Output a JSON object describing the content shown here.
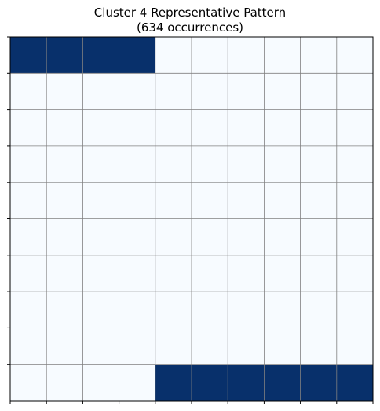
{
  "chart_data": {
    "type": "heatmap",
    "title": "Cluster 4 Representative Pattern",
    "subtitle": "(634 occurrences)",
    "rows": 10,
    "cols": 10,
    "grid": true,
    "axes_tick_labels": false,
    "colors": {
      "filled": "#08306b",
      "empty": "#f7fbff",
      "grid": "#808080",
      "frame": "#000000"
    },
    "values": [
      [
        1,
        1,
        1,
        1,
        0,
        0,
        0,
        0,
        0,
        0
      ],
      [
        0,
        0,
        0,
        0,
        0,
        0,
        0,
        0,
        0,
        0
      ],
      [
        0,
        0,
        0,
        0,
        0,
        0,
        0,
        0,
        0,
        0
      ],
      [
        0,
        0,
        0,
        0,
        0,
        0,
        0,
        0,
        0,
        0
      ],
      [
        0,
        0,
        0,
        0,
        0,
        0,
        0,
        0,
        0,
        0
      ],
      [
        0,
        0,
        0,
        0,
        0,
        0,
        0,
        0,
        0,
        0
      ],
      [
        0,
        0,
        0,
        0,
        0,
        0,
        0,
        0,
        0,
        0
      ],
      [
        0,
        0,
        0,
        0,
        0,
        0,
        0,
        0,
        0,
        0
      ],
      [
        0,
        0,
        0,
        0,
        0,
        0,
        0,
        0,
        0,
        0
      ],
      [
        0,
        0,
        0,
        0,
        1,
        1,
        1,
        1,
        1,
        1
      ]
    ]
  }
}
